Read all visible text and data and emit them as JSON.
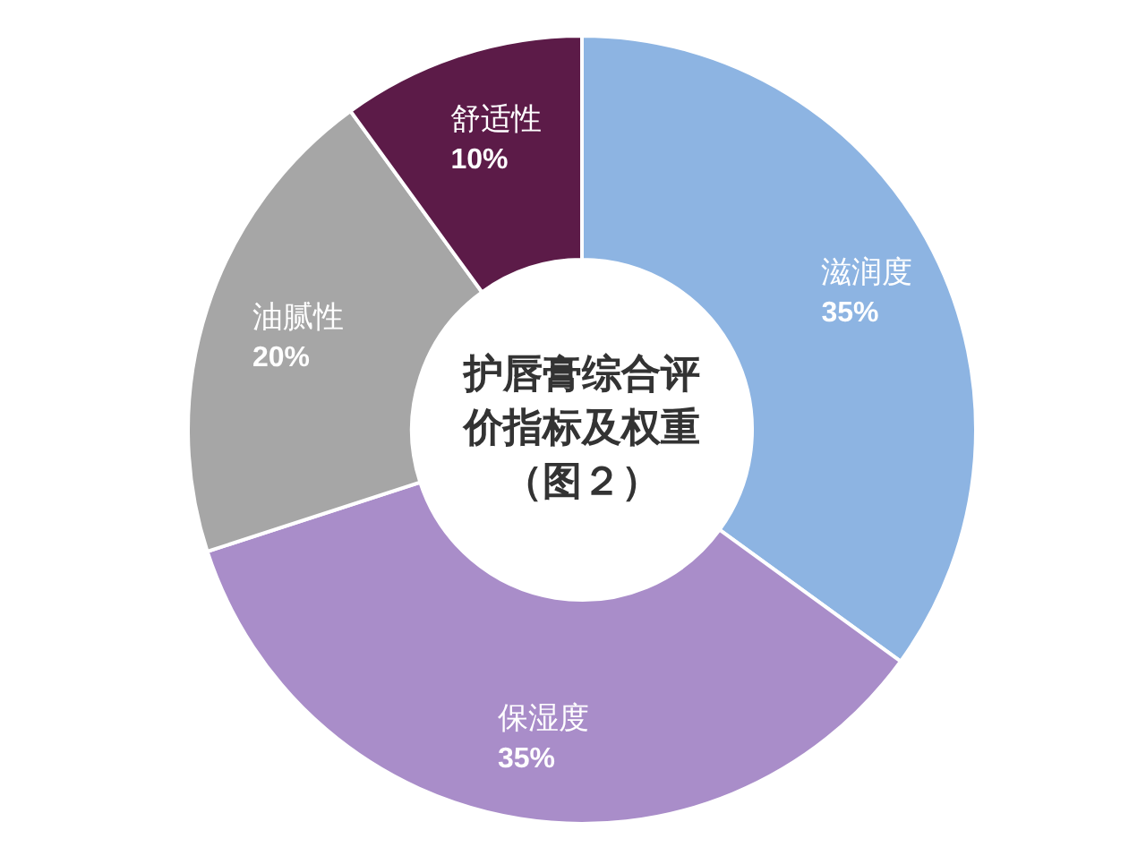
{
  "chart_data": {
    "type": "donut",
    "title": "护唇膏综合评价指标及权重（图２）",
    "categories": [
      "滋润度",
      "保湿度",
      "油腻性",
      "舒适性"
    ],
    "values": [
      35,
      35,
      20,
      10
    ],
    "value_labels": [
      "35%",
      "35%",
      "20%",
      "10%"
    ],
    "colors": [
      "#8db4e2",
      "#a98dc9",
      "#a6a6a6",
      "#5c1b48"
    ]
  }
}
